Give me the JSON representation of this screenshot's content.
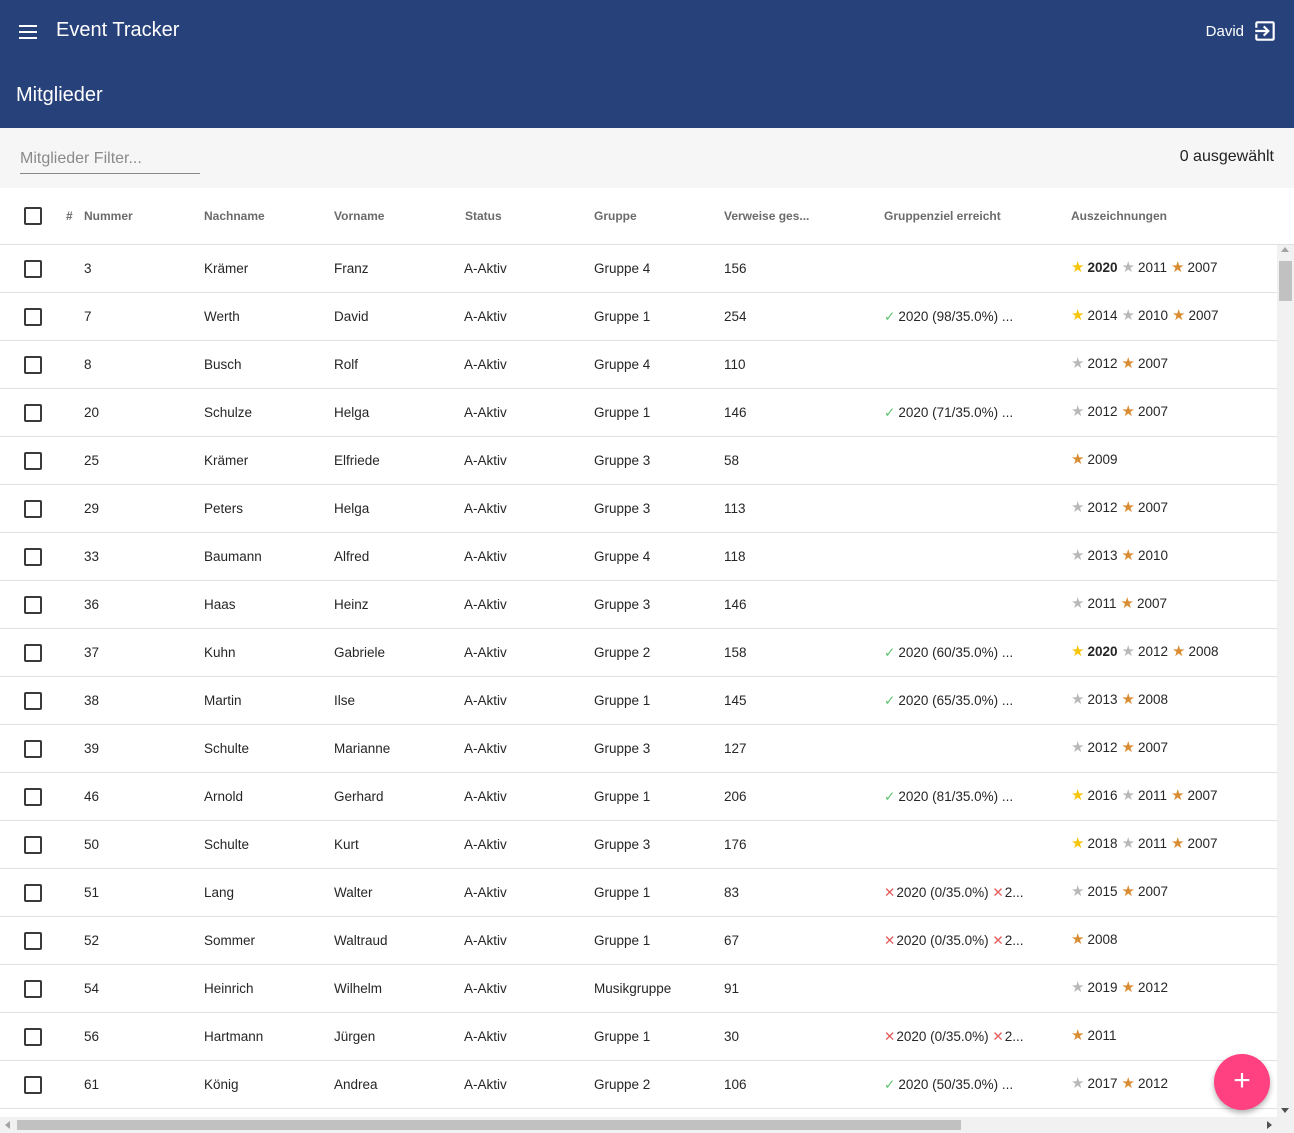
{
  "app": {
    "title": "Event Tracker",
    "user": "David",
    "page_title": "Mitglieder"
  },
  "filter": {
    "placeholder": "Mitglieder Filter...",
    "value": "",
    "selected_text": "0 ausgewählt"
  },
  "columns": {
    "hash": "#",
    "nummer": "Nummer",
    "nachname": "Nachname",
    "vorname": "Vorname",
    "status": "Status",
    "gruppe": "Gruppe",
    "verweise": "Verweise ges...",
    "gruppenziel": "Gruppenziel erreicht",
    "auszeichnungen": "Auszeichnungen"
  },
  "colors": {
    "appbar": "#27417a",
    "fab": "#ff4081",
    "gold": "#f6c40a",
    "silver": "#b9b9b9",
    "bronze": "#d98d33",
    "ok": "#5cc06b",
    "fail": "#e25a5a"
  },
  "rows": [
    {
      "nummer": "3",
      "nachname": "Krämer",
      "vorname": "Franz",
      "status": "A-Aktiv",
      "gruppe": "Gruppe 4",
      "verweise": "156",
      "goals": [],
      "awards": [
        {
          "type": "gold",
          "year": "2020",
          "bold": true
        },
        {
          "type": "silver",
          "year": "2011"
        },
        {
          "type": "bronze",
          "year": "2007"
        }
      ]
    },
    {
      "nummer": "7",
      "nachname": "Werth",
      "vorname": "David",
      "status": "A-Aktiv",
      "gruppe": "Gruppe 1",
      "verweise": "254",
      "goals": [
        {
          "ok": true,
          "text": "2020 (98/35.0%) ..."
        }
      ],
      "awards": [
        {
          "type": "gold",
          "year": "2014"
        },
        {
          "type": "silver",
          "year": "2010"
        },
        {
          "type": "bronze",
          "year": "2007"
        }
      ]
    },
    {
      "nummer": "8",
      "nachname": "Busch",
      "vorname": "Rolf",
      "status": "A-Aktiv",
      "gruppe": "Gruppe 4",
      "verweise": "110",
      "goals": [],
      "awards": [
        {
          "type": "silver",
          "year": "2012"
        },
        {
          "type": "bronze",
          "year": "2007"
        }
      ]
    },
    {
      "nummer": "20",
      "nachname": "Schulze",
      "vorname": "Helga",
      "status": "A-Aktiv",
      "gruppe": "Gruppe 1",
      "verweise": "146",
      "goals": [
        {
          "ok": true,
          "text": "2020 (71/35.0%) ..."
        }
      ],
      "awards": [
        {
          "type": "silver",
          "year": "2012"
        },
        {
          "type": "bronze",
          "year": "2007"
        }
      ]
    },
    {
      "nummer": "25",
      "nachname": "Krämer",
      "vorname": "Elfriede",
      "status": "A-Aktiv",
      "gruppe": "Gruppe 3",
      "verweise": "58",
      "goals": [],
      "awards": [
        {
          "type": "bronze",
          "year": "2009"
        }
      ]
    },
    {
      "nummer": "29",
      "nachname": "Peters",
      "vorname": "Helga",
      "status": "A-Aktiv",
      "gruppe": "Gruppe 3",
      "verweise": "113",
      "goals": [],
      "awards": [
        {
          "type": "silver",
          "year": "2012"
        },
        {
          "type": "bronze",
          "year": "2007"
        }
      ]
    },
    {
      "nummer": "33",
      "nachname": "Baumann",
      "vorname": "Alfred",
      "status": "A-Aktiv",
      "gruppe": "Gruppe 4",
      "verweise": "118",
      "goals": [],
      "awards": [
        {
          "type": "silver",
          "year": "2013"
        },
        {
          "type": "bronze",
          "year": "2010"
        }
      ]
    },
    {
      "nummer": "36",
      "nachname": "Haas",
      "vorname": "Heinz",
      "status": "A-Aktiv",
      "gruppe": "Gruppe 3",
      "verweise": "146",
      "goals": [],
      "awards": [
        {
          "type": "silver",
          "year": "2011"
        },
        {
          "type": "bronze",
          "year": "2007"
        }
      ]
    },
    {
      "nummer": "37",
      "nachname": "Kuhn",
      "vorname": "Gabriele",
      "status": "A-Aktiv",
      "gruppe": "Gruppe 2",
      "verweise": "158",
      "goals": [
        {
          "ok": true,
          "text": "2020 (60/35.0%) ..."
        }
      ],
      "awards": [
        {
          "type": "gold",
          "year": "2020",
          "bold": true
        },
        {
          "type": "silver",
          "year": "2012"
        },
        {
          "type": "bronze",
          "year": "2008"
        }
      ]
    },
    {
      "nummer": "38",
      "nachname": "Martin",
      "vorname": "Ilse",
      "status": "A-Aktiv",
      "gruppe": "Gruppe 1",
      "verweise": "145",
      "goals": [
        {
          "ok": true,
          "text": "2020 (65/35.0%) ..."
        }
      ],
      "awards": [
        {
          "type": "silver",
          "year": "2013"
        },
        {
          "type": "bronze",
          "year": "2008"
        }
      ]
    },
    {
      "nummer": "39",
      "nachname": "Schulte",
      "vorname": "Marianne",
      "status": "A-Aktiv",
      "gruppe": "Gruppe 3",
      "verweise": "127",
      "goals": [],
      "awards": [
        {
          "type": "silver",
          "year": "2012"
        },
        {
          "type": "bronze",
          "year": "2007"
        }
      ]
    },
    {
      "nummer": "46",
      "nachname": "Arnold",
      "vorname": "Gerhard",
      "status": "A-Aktiv",
      "gruppe": "Gruppe 1",
      "verweise": "206",
      "goals": [
        {
          "ok": true,
          "text": "2020 (81/35.0%) ..."
        }
      ],
      "awards": [
        {
          "type": "gold",
          "year": "2016"
        },
        {
          "type": "silver",
          "year": "2011"
        },
        {
          "type": "bronze",
          "year": "2007"
        }
      ]
    },
    {
      "nummer": "50",
      "nachname": "Schulte",
      "vorname": "Kurt",
      "status": "A-Aktiv",
      "gruppe": "Gruppe 3",
      "verweise": "176",
      "goals": [],
      "awards": [
        {
          "type": "gold",
          "year": "2018"
        },
        {
          "type": "silver",
          "year": "2011"
        },
        {
          "type": "bronze",
          "year": "2007"
        }
      ]
    },
    {
      "nummer": "51",
      "nachname": "Lang",
      "vorname": "Walter",
      "status": "A-Aktiv",
      "gruppe": "Gruppe 1",
      "verweise": "83",
      "goals": [
        {
          "ok": false,
          "text": "2020 (0/35.0%)"
        },
        {
          "ok": false,
          "text": "2..."
        }
      ],
      "awards": [
        {
          "type": "silver",
          "year": "2015"
        },
        {
          "type": "bronze",
          "year": "2007"
        }
      ]
    },
    {
      "nummer": "52",
      "nachname": "Sommer",
      "vorname": "Waltraud",
      "status": "A-Aktiv",
      "gruppe": "Gruppe 1",
      "verweise": "67",
      "goals": [
        {
          "ok": false,
          "text": "2020 (0/35.0%)"
        },
        {
          "ok": false,
          "text": "2..."
        }
      ],
      "awards": [
        {
          "type": "bronze",
          "year": "2008"
        }
      ]
    },
    {
      "nummer": "54",
      "nachname": "Heinrich",
      "vorname": "Wilhelm",
      "status": "A-Aktiv",
      "gruppe": "Musikgruppe",
      "verweise": "91",
      "goals": [],
      "awards": [
        {
          "type": "silver",
          "year": "2019"
        },
        {
          "type": "bronze",
          "year": "2012"
        }
      ]
    },
    {
      "nummer": "56",
      "nachname": "Hartmann",
      "vorname": "Jürgen",
      "status": "A-Aktiv",
      "gruppe": "Gruppe 1",
      "verweise": "30",
      "goals": [
        {
          "ok": false,
          "text": "2020 (0/35.0%)"
        },
        {
          "ok": false,
          "text": "2..."
        }
      ],
      "awards": [
        {
          "type": "bronze",
          "year": "2011"
        }
      ]
    },
    {
      "nummer": "61",
      "nachname": "König",
      "vorname": "Andrea",
      "status": "A-Aktiv",
      "gruppe": "Gruppe 2",
      "verweise": "106",
      "goals": [
        {
          "ok": true,
          "text": "2020 (50/35.0%) ..."
        }
      ],
      "awards": [
        {
          "type": "silver",
          "year": "2017"
        },
        {
          "type": "bronze",
          "year": "2012"
        }
      ]
    }
  ],
  "fab": {
    "label": "+"
  }
}
